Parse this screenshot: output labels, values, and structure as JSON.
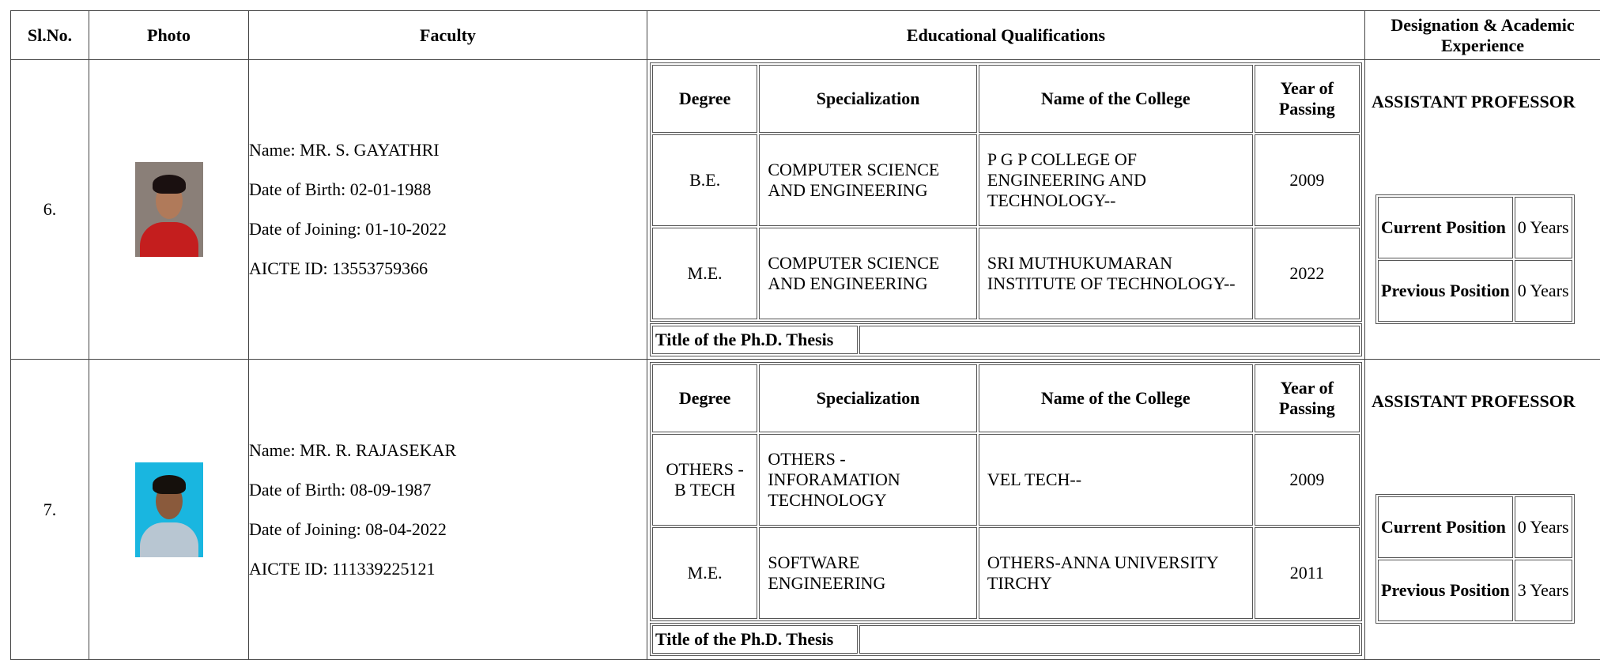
{
  "table": {
    "headers": [
      "Sl.No.",
      "Photo",
      "Faculty",
      "Educational Qualifications",
      "Designation & Academic Experience"
    ],
    "rows": [
      {
        "sl_no": "6.",
        "faculty": [
          "Name: MR. S. GAYATHRI",
          "Date of Birth: 02-01-1988",
          "Date of Joining: 01-10-2022",
          "AICTE ID: 13553759366"
        ],
        "qualification_headers": [
          "Degree",
          "Specialization",
          "Name of the College",
          "Year of Passing"
        ],
        "qualifications": [
          [
            "B.E.",
            "COMPUTER SCIENCE AND ENGINEERING",
            "P G P COLLEGE OF ENGINEERING AND TECHNOLOGY--",
            "2009"
          ],
          [
            "M.E.",
            "COMPUTER SCIENCE AND ENGINEERING",
            "SRI MUTHUKUMARAN INSTITUTE OF TECHNOLOGY--",
            "2022"
          ]
        ],
        "thesis_label": "Title of the Ph.D. Thesis",
        "designation": "ASSISTANT PROFESSOR",
        "experience": [
          [
            "Current Position",
            "0 Years"
          ],
          [
            "Previous Position",
            "0 Years"
          ]
        ]
      },
      {
        "sl_no": "7.",
        "faculty": [
          "Name: MR. R. RAJASEKAR",
          "Date of Birth: 08-09-1987",
          "Date of Joining: 08-04-2022",
          "AICTE ID: 111339225121"
        ],
        "qualification_headers": [
          "Degree",
          "Specialization",
          "Name of the College",
          "Year of Passing"
        ],
        "qualifications": [
          [
            "OTHERS - B TECH",
            "OTHERS - INFORAMATION TECHNOLOGY",
            "VEL TECH--",
            "2009"
          ],
          [
            "M.E.",
            "SOFTWARE ENGINEERING",
            "OTHERS-ANNA UNIVERSITY TIRCHY",
            "2011"
          ]
        ],
        "thesis_label": "Title of the Ph.D. Thesis",
        "designation": "ASSISTANT PROFESSOR",
        "experience": [
          [
            "Current Position",
            "0 Years"
          ],
          [
            "Previous Position",
            "3 Years"
          ]
        ]
      }
    ]
  }
}
